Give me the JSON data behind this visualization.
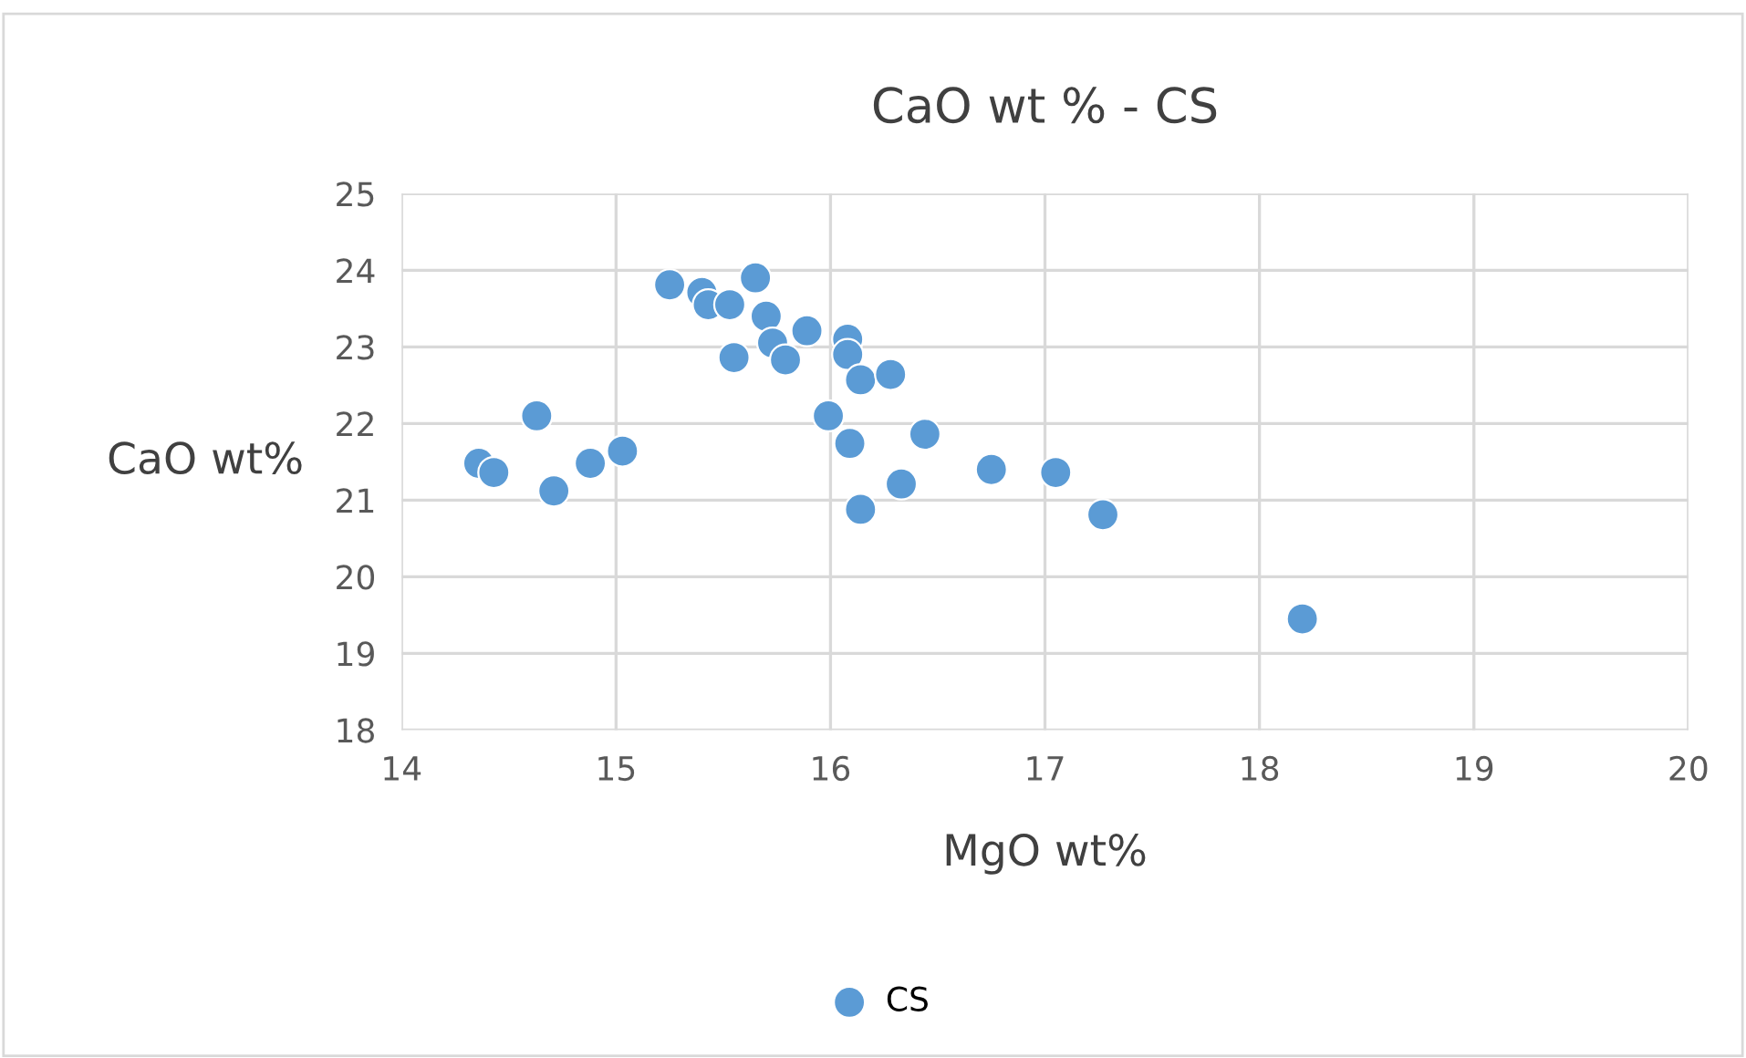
{
  "chart_data": {
    "type": "scatter",
    "title": "CaO wt % - CS",
    "xlabel": "MgO wt%",
    "ylabel": "CaO wt%",
    "xlim": [
      14,
      20
    ],
    "xticks": [
      14,
      15,
      16,
      17,
      18,
      19,
      20
    ],
    "ylim": [
      18,
      25
    ],
    "yticks": [
      18,
      19,
      20,
      21,
      22,
      23,
      24,
      25
    ],
    "grid": true,
    "legend": "bottom",
    "marker": "circle",
    "series": [
      {
        "name": "CS",
        "color": "#5b9bd5",
        "x": [
          14.36,
          14.43,
          14.63,
          14.71,
          14.88,
          15.03,
          15.25,
          15.4,
          15.43,
          15.53,
          15.65,
          15.7,
          15.55,
          15.73,
          15.79,
          15.89,
          16.08,
          16.08,
          16.14,
          16.28,
          15.99,
          16.09,
          16.44,
          16.33,
          16.14,
          16.75,
          17.05,
          17.27,
          18.2
        ],
        "values": [
          21.48,
          21.36,
          22.1,
          21.12,
          21.48,
          21.64,
          23.81,
          23.71,
          23.55,
          23.55,
          23.9,
          23.4,
          22.86,
          23.05,
          22.83,
          23.21,
          23.1,
          22.9,
          22.57,
          22.64,
          22.1,
          21.74,
          21.86,
          21.21,
          20.88,
          21.4,
          21.36,
          20.81,
          19.45
        ]
      }
    ]
  }
}
